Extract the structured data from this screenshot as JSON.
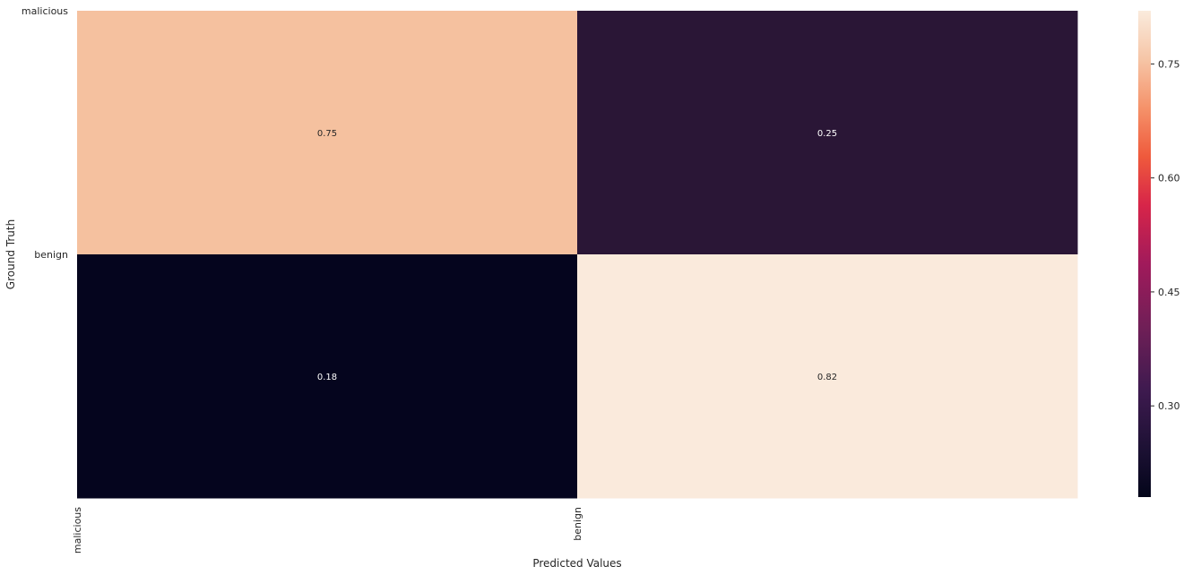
{
  "chart_data": {
    "type": "heatmap",
    "xlabel": "Predicted Values",
    "ylabel": "Ground Truth",
    "x_categories": [
      "malicious",
      "benign"
    ],
    "y_categories": [
      "malicious",
      "benign"
    ],
    "values": [
      [
        0.75,
        0.25
      ],
      [
        0.18,
        0.82
      ]
    ],
    "annotation_labels": [
      [
        "0.75",
        "0.25"
      ],
      [
        "0.18",
        "0.82"
      ]
    ],
    "colormap": "rocket",
    "colorbar": {
      "range": [
        0.18,
        0.82
      ],
      "ticks": [
        0.3,
        0.45,
        0.6,
        0.75
      ],
      "tick_labels": [
        "0.30",
        "0.45",
        "0.60",
        "0.75"
      ]
    },
    "cell_colors": [
      [
        "#f5c19f",
        "#2a1636"
      ],
      [
        "#05051e",
        "#faeadc"
      ]
    ],
    "annotation_colors": [
      [
        "#262626",
        "#ffffff"
      ],
      [
        "#ffffff",
        "#262626"
      ]
    ],
    "grid": false
  }
}
